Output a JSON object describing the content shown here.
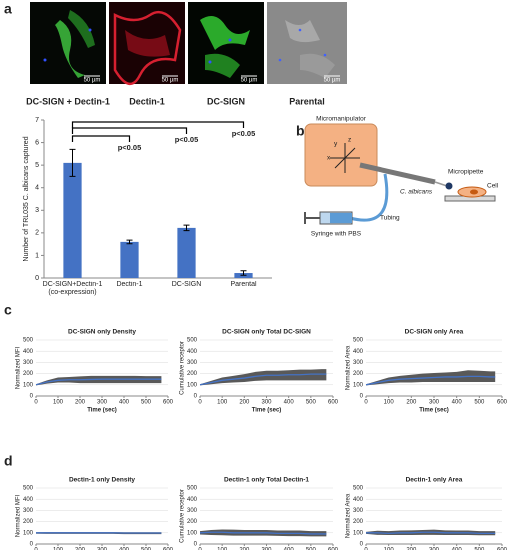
{
  "panel_labels": [
    "a",
    "b",
    "c",
    "d"
  ],
  "microscopy": [
    {
      "label": "DC-SIGN + Dectin-1",
      "scale_bar": "50 µm"
    },
    {
      "label": "Dectin-1",
      "scale_bar": "50 µm"
    },
    {
      "label": "DC-SIGN",
      "scale_bar": "50 µm"
    },
    {
      "label": "Parental",
      "scale_bar": "50 µm"
    }
  ],
  "diagram": {
    "micromanipulator": "Micromanipulator",
    "axes": [
      "x",
      "y",
      "z"
    ],
    "micropipette": "Micropipette",
    "cell": "Cell",
    "organism": "C. albicans",
    "tubing": "Tubing",
    "syringe": "Syringe with PBS"
  },
  "chart_data": [
    {
      "type": "bar",
      "ylabel": "Number of TRL035 C. albicans captured",
      "categories": [
        "DC-SIGN+Dectin-1 (co-expression)",
        "Dectin-1",
        "DC-SIGN",
        "Parental"
      ],
      "values": [
        5.1,
        1.6,
        2.22,
        0.22
      ],
      "errors": [
        0.6,
        0.08,
        0.12,
        0.1
      ],
      "color": "#4472c4",
      "ylim": [
        0,
        7
      ],
      "yticks": [
        0,
        1,
        2,
        3,
        4,
        5,
        6,
        7
      ],
      "annotations": [
        "p<0.05",
        "p<0.05",
        "p<0.05"
      ]
    },
    {
      "type": "line",
      "title": "DC-SIGN only Density",
      "xlabel": "Time (sec)",
      "ylabel": "Normalized MFI",
      "x": [
        0,
        50,
        100,
        150,
        200,
        250,
        300,
        350,
        400,
        450,
        500,
        550,
        570
      ],
      "xlim": [
        0,
        600
      ],
      "xticks": [
        0,
        100,
        200,
        300,
        400,
        500,
        600
      ],
      "ylim": [
        0,
        500
      ],
      "yticks": [
        0,
        100,
        200,
        300,
        400,
        500
      ],
      "series": [
        {
          "color": "#4472c4",
          "band_color": "#595959",
          "values": [
            100,
            125,
            140,
            145,
            145,
            148,
            150,
            150,
            150,
            150,
            150,
            150,
            150
          ],
          "lower": [
            95,
            110,
            120,
            120,
            115,
            115,
            115,
            115,
            115,
            115,
            115,
            115,
            115
          ],
          "upper": [
            105,
            140,
            165,
            170,
            175,
            180,
            180,
            180,
            180,
            180,
            178,
            178,
            178
          ]
        }
      ]
    },
    {
      "type": "line",
      "title": "DC-SIGN only Total DC-SIGN",
      "xlabel": "Time (sec)",
      "ylabel": "Cumulative receptor",
      "x": [
        0,
        50,
        100,
        150,
        200,
        250,
        300,
        350,
        400,
        450,
        500,
        550,
        570
      ],
      "xlim": [
        0,
        600
      ],
      "xticks": [
        0,
        100,
        200,
        300,
        400,
        500,
        600
      ],
      "ylim": [
        0,
        500
      ],
      "yticks": [
        0,
        100,
        200,
        300,
        400,
        500
      ],
      "series": [
        {
          "color": "#4472c4",
          "band_color": "#595959",
          "values": [
            100,
            120,
            140,
            150,
            160,
            175,
            185,
            185,
            190,
            190,
            195,
            195,
            195
          ],
          "lower": [
            95,
            105,
            115,
            120,
            125,
            135,
            140,
            140,
            140,
            140,
            140,
            140,
            140
          ],
          "upper": [
            105,
            135,
            165,
            180,
            195,
            215,
            225,
            225,
            230,
            235,
            235,
            240,
            240
          ]
        }
      ]
    },
    {
      "type": "line",
      "title": "DC-SIGN only Area",
      "xlabel": "Time (sec)",
      "ylabel": "Normalized Area",
      "x": [
        0,
        50,
        100,
        150,
        200,
        250,
        300,
        350,
        400,
        450,
        500,
        550,
        570
      ],
      "xlim": [
        0,
        600
      ],
      "xticks": [
        0,
        100,
        200,
        300,
        400,
        500,
        600
      ],
      "ylim": [
        0,
        500
      ],
      "yticks": [
        0,
        100,
        200,
        300,
        400,
        500
      ],
      "series": [
        {
          "color": "#4472c4",
          "band_color": "#595959",
          "values": [
            100,
            120,
            140,
            150,
            155,
            160,
            165,
            170,
            170,
            175,
            175,
            170,
            170
          ],
          "lower": [
            95,
            105,
            115,
            120,
            120,
            125,
            125,
            125,
            125,
            125,
            125,
            125,
            125
          ],
          "upper": [
            105,
            135,
            165,
            180,
            190,
            200,
            205,
            210,
            215,
            230,
            225,
            220,
            220
          ]
        }
      ]
    },
    {
      "type": "line",
      "title": "Dectin-1 only Density",
      "xlabel": "Time (sec)",
      "ylabel": "Normalized MFI",
      "x": [
        0,
        50,
        100,
        150,
        200,
        250,
        300,
        350,
        400,
        450,
        500,
        550,
        570
      ],
      "xlim": [
        0,
        600
      ],
      "xticks": [
        0,
        100,
        200,
        300,
        400,
        500,
        600
      ],
      "ylim": [
        0,
        500
      ],
      "yticks": [
        0,
        100,
        200,
        300,
        400,
        500
      ],
      "series": [
        {
          "color": "#4472c4",
          "band_color": "#595959",
          "values": [
            100,
            100,
            100,
            100,
            100,
            100,
            100,
            100,
            98,
            98,
            98,
            98,
            98
          ],
          "lower": [
            92,
            90,
            90,
            90,
            90,
            90,
            90,
            90,
            88,
            88,
            88,
            88,
            88
          ],
          "upper": [
            105,
            106,
            106,
            106,
            106,
            106,
            106,
            106,
            105,
            105,
            105,
            105,
            105
          ]
        }
      ]
    },
    {
      "type": "line",
      "title": "Dectin-1 only Total Dectin-1",
      "xlabel": "Time (sec)",
      "ylabel": "Cumulative receptor",
      "x": [
        0,
        50,
        100,
        150,
        200,
        250,
        300,
        350,
        400,
        450,
        500,
        550,
        570
      ],
      "xlim": [
        0,
        600
      ],
      "xticks": [
        0,
        100,
        200,
        300,
        400,
        500,
        600
      ],
      "ylim": [
        0,
        500
      ],
      "yticks": [
        0,
        100,
        200,
        300,
        400,
        500
      ],
      "series": [
        {
          "color": "#4472c4",
          "band_color": "#595959",
          "values": [
            100,
            105,
            105,
            100,
            100,
            100,
            100,
            95,
            95,
            95,
            90,
            90,
            90
          ],
          "lower": [
            85,
            80,
            78,
            75,
            75,
            75,
            75,
            72,
            70,
            70,
            68,
            68,
            68
          ],
          "upper": [
            115,
            125,
            130,
            128,
            125,
            125,
            125,
            120,
            120,
            120,
            115,
            115,
            115
          ]
        }
      ]
    },
    {
      "type": "line",
      "title": "Dectin-1 only Area",
      "xlabel": "Time (sec)",
      "ylabel": "Normalized Area",
      "x": [
        0,
        50,
        100,
        150,
        200,
        250,
        300,
        350,
        400,
        450,
        500,
        550,
        570
      ],
      "xlim": [
        0,
        600
      ],
      "xticks": [
        0,
        100,
        200,
        300,
        400,
        500,
        600
      ],
      "ylim": [
        0,
        500
      ],
      "yticks": [
        0,
        100,
        200,
        300,
        400,
        500
      ],
      "series": [
        {
          "color": "#4472c4",
          "band_color": "#595959",
          "values": [
            100,
            100,
            95,
            100,
            100,
            105,
            105,
            100,
            100,
            100,
            95,
            95,
            95
          ],
          "lower": [
            90,
            82,
            80,
            80,
            80,
            82,
            82,
            80,
            80,
            80,
            78,
            78,
            78
          ],
          "upper": [
            108,
            118,
            115,
            120,
            122,
            125,
            128,
            122,
            120,
            120,
            115,
            115,
            115
          ]
        }
      ]
    }
  ]
}
